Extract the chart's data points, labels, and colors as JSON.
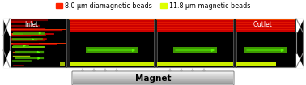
{
  "fig_width": 3.78,
  "fig_height": 1.05,
  "dpi": 100,
  "bg_color": "#ffffff",
  "legend_items": [
    {
      "label": "8.0 μm diamagnetic beads",
      "color": "#ff2200"
    },
    {
      "label": "11.8 μm magnetic beads",
      "color": "#ddff00"
    }
  ],
  "legend_fontsize": 5.8,
  "channel_bg": "#000000",
  "channel_border": "#777777",
  "inlet_label": "Inlet",
  "outlet_label": "Outlet",
  "magnet_label": "Magnet",
  "label_fontsize": 5.5,
  "magnet_fontsize": 7.5,
  "panel_gap_color": "#111111",
  "red_color": "#cc0000",
  "red_bright": "#ff3300",
  "yellow_color": "#ccee00",
  "green_color": "#44aa00",
  "green_bright": "#55ff00",
  "arrow_color": "#cccccc",
  "gray_border": "#888888"
}
